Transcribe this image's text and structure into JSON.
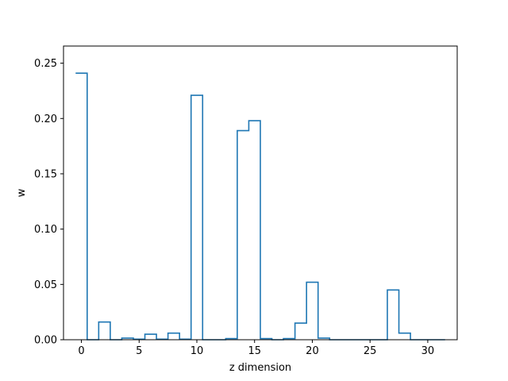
{
  "chart_data": {
    "type": "histogram-step",
    "xlabel": "z dimension",
    "ylabel": "w",
    "xlim": [
      -1.55,
      32.55
    ],
    "ylim": [
      0,
      0.2655
    ],
    "x_ticks": [
      0,
      5,
      10,
      15,
      20,
      25,
      30
    ],
    "y_ticks": [
      0.0,
      0.05,
      0.1,
      0.15,
      0.2,
      0.25
    ],
    "y_tick_labels": [
      "0.00",
      "0.05",
      "0.10",
      "0.15",
      "0.20",
      "0.25"
    ],
    "bins": [
      0,
      1,
      2,
      3,
      4,
      5,
      6,
      7,
      8,
      9,
      10,
      11,
      12,
      13,
      14,
      15,
      16,
      17,
      18,
      19,
      20,
      21,
      22,
      23,
      24,
      25,
      26,
      27,
      28,
      29,
      30,
      31
    ],
    "values": [
      0.241,
      0.0,
      0.016,
      0.0,
      0.0015,
      0.0005,
      0.005,
      0.0005,
      0.006,
      0.0005,
      0.221,
      0.0,
      0.0,
      0.001,
      0.189,
      0.198,
      0.001,
      0.0,
      0.001,
      0.015,
      0.052,
      0.0015,
      0.0,
      0.0,
      0.0,
      0.0,
      0.0,
      0.045,
      0.006,
      0.0,
      0.0,
      0.0
    ],
    "line_color": "#1f77b4",
    "grid": false,
    "legend": false
  }
}
